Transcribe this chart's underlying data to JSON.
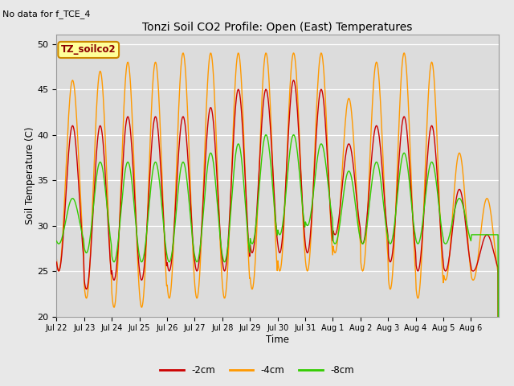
{
  "title": "Tonzi Soil CO2 Profile: Open (East) Temperatures",
  "no_data_text": "No data for f_TCE_4",
  "xlabel": "Time",
  "ylabel": "Soil Temperature (C)",
  "ylim": [
    20,
    51
  ],
  "yticks": [
    20,
    25,
    30,
    35,
    40,
    45,
    50
  ],
  "background_color": "#e8e8e8",
  "plot_bg_color": "#dcdcdc",
  "legend_label": "TZ_soilco2",
  "legend_box_color": "#ffff99",
  "legend_box_edge": "#cc8800",
  "series": {
    "2cm": {
      "color": "#cc0000",
      "label": "-2cm"
    },
    "4cm": {
      "color": "#ff9900",
      "label": "-4cm"
    },
    "8cm": {
      "color": "#33cc00",
      "label": "-8cm"
    }
  },
  "x_tick_labels": [
    "Jul 22",
    "Jul 23",
    "Jul 24",
    "Jul 25",
    "Jul 26",
    "Jul 27",
    "Jul 28",
    "Jul 29",
    "Jul 30",
    "Jul 31",
    "Aug 1",
    "Aug 2",
    "Aug 3",
    "Aug 4",
    "Aug 5",
    "Aug 6"
  ],
  "num_days": 16,
  "num_points_per_day": 48,
  "2cm_peaks": [
    41,
    41,
    42,
    42,
    42,
    43,
    45,
    45,
    46,
    45,
    39,
    41,
    42,
    41,
    34,
    29
  ],
  "2cm_troughs": [
    25,
    23,
    24,
    24,
    25,
    25,
    25,
    27,
    27,
    27,
    29,
    28,
    26,
    25,
    25,
    25
  ],
  "4cm_peaks": [
    46,
    47,
    48,
    48,
    49,
    49,
    49,
    49,
    49,
    49,
    44,
    48,
    49,
    48,
    38,
    33
  ],
  "4cm_troughs": [
    25,
    22,
    21,
    21,
    22,
    22,
    22,
    23,
    25,
    25,
    27,
    25,
    23,
    22,
    24,
    24
  ],
  "8cm_peaks": [
    33,
    37,
    37,
    37,
    37,
    38,
    39,
    40,
    40,
    39,
    36,
    37,
    38,
    37,
    33,
    29
  ],
  "8cm_troughs": [
    28,
    27,
    26,
    26,
    26,
    26,
    26,
    28,
    29,
    30,
    28,
    28,
    28,
    28,
    28,
    29
  ]
}
